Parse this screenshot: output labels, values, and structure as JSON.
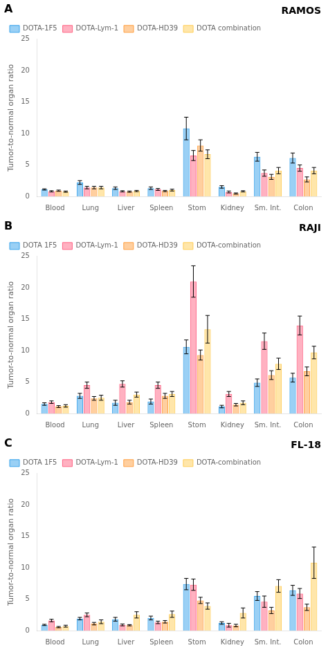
{
  "chart_data": [
    {
      "type": "bar",
      "title": "RAMOS",
      "annotations": [
        "A"
      ],
      "categories": [
        "Blood",
        "Lung",
        "Liver",
        "Spleen",
        "Stom",
        "Kidney",
        "Sm. Int.",
        "Colon"
      ],
      "series": [
        {
          "name": "DOTA-1F5",
          "values": [
            1.1,
            2.2,
            1.3,
            1.3,
            10.8,
            1.5,
            6.3,
            6.1
          ],
          "errors": [
            0.1,
            0.3,
            0.2,
            0.2,
            1.8,
            0.2,
            0.7,
            0.8
          ]
        },
        {
          "name": "DOTA-Lym-1",
          "values": [
            0.8,
            1.4,
            0.8,
            1.1,
            6.5,
            0.7,
            3.7,
            4.5
          ],
          "errors": [
            0.1,
            0.2,
            0.1,
            0.15,
            0.8,
            0.15,
            0.5,
            0.5
          ]
        },
        {
          "name": "DOTA-HD39",
          "values": [
            0.9,
            1.4,
            0.75,
            0.85,
            8.1,
            0.45,
            3.1,
            2.7
          ],
          "errors": [
            0.1,
            0.2,
            0.1,
            0.1,
            0.9,
            0.1,
            0.4,
            0.4
          ]
        },
        {
          "name": "DOTA combination",
          "values": [
            0.75,
            1.4,
            0.85,
            1.0,
            6.7,
            0.8,
            4.1,
            4.1
          ],
          "errors": [
            0.1,
            0.2,
            0.1,
            0.15,
            0.7,
            0.1,
            0.5,
            0.5
          ]
        }
      ],
      "ylabel": "Tumor-to-normal organ ratio",
      "ylim": [
        0,
        25
      ],
      "yticks": [
        0,
        5,
        10,
        15,
        20,
        25
      ],
      "grid": false,
      "legend": "upper left"
    },
    {
      "type": "bar",
      "title": "RAJI",
      "annotations": [
        "B"
      ],
      "categories": [
        "Blood",
        "Lung",
        "Liver",
        "Spleen",
        "Stom",
        "Kidney",
        "Sm. Int.",
        "Colon"
      ],
      "series": [
        {
          "name": "DOTA 1F5",
          "values": [
            1.5,
            2.8,
            1.7,
            1.9,
            10.6,
            1.1,
            4.9,
            5.7
          ],
          "errors": [
            0.2,
            0.4,
            0.4,
            0.4,
            1.1,
            0.2,
            0.6,
            0.7
          ]
        },
        {
          "name": "DOTA-Lym-1",
          "values": [
            1.8,
            4.5,
            4.7,
            4.5,
            21.0,
            3.1,
            11.5,
            14.0
          ],
          "errors": [
            0.2,
            0.5,
            0.5,
            0.5,
            2.5,
            0.4,
            1.3,
            1.5
          ]
        },
        {
          "name": "DOTA-HD39",
          "values": [
            1.1,
            2.4,
            1.8,
            2.8,
            9.3,
            1.4,
            6.1,
            6.7
          ],
          "errors": [
            0.15,
            0.3,
            0.3,
            0.4,
            0.8,
            0.2,
            0.7,
            0.7
          ]
        },
        {
          "name": "DOTA-combination",
          "values": [
            1.2,
            2.5,
            3.0,
            3.1,
            13.4,
            1.7,
            7.9,
            9.7
          ],
          "errors": [
            0.2,
            0.4,
            0.4,
            0.4,
            2.2,
            0.3,
            0.9,
            1.0
          ]
        }
      ],
      "ylabel": "Tumor-to-normal organ ratio",
      "ylim": [
        0,
        25
      ],
      "yticks": [
        0,
        5,
        10,
        15,
        20,
        25
      ],
      "grid": false,
      "legend": "upper left"
    },
    {
      "type": "bar",
      "title": "FL-18",
      "annotations": [
        "C"
      ],
      "categories": [
        "Blood",
        "Lung",
        "Liver",
        "Spleen",
        "Stom",
        "Kidney",
        "Sm. Int.",
        "Colon"
      ],
      "series": [
        {
          "name": "DOTA 1F5",
          "values": [
            0.9,
            1.9,
            1.8,
            2.0,
            7.4,
            1.2,
            5.5,
            6.4
          ],
          "errors": [
            0.1,
            0.2,
            0.3,
            0.3,
            0.9,
            0.2,
            0.7,
            0.8
          ]
        },
        {
          "name": "DOTA-Lym-1",
          "values": [
            1.6,
            2.5,
            0.9,
            1.3,
            7.3,
            0.85,
            4.6,
            5.9
          ],
          "errors": [
            0.2,
            0.3,
            0.15,
            0.2,
            0.9,
            0.3,
            0.9,
            0.8
          ]
        },
        {
          "name": "DOTA-HD39",
          "values": [
            0.55,
            1.1,
            0.85,
            1.4,
            4.8,
            0.8,
            3.2,
            3.7
          ],
          "errors": [
            0.1,
            0.2,
            0.1,
            0.2,
            0.5,
            0.2,
            0.5,
            0.5
          ]
        },
        {
          "name": "DOTA-combination",
          "values": [
            0.7,
            1.4,
            2.5,
            2.6,
            3.9,
            2.8,
            7.1,
            10.8
          ],
          "errors": [
            0.15,
            0.3,
            0.5,
            0.5,
            0.5,
            0.8,
            1.0,
            2.5
          ]
        }
      ],
      "ylabel": "Tumor-to-normal organ ratio",
      "ylim": [
        0,
        25
      ],
      "yticks": [
        0,
        5,
        10,
        15,
        20,
        25
      ],
      "grid": false,
      "legend": "upper left"
    }
  ]
}
